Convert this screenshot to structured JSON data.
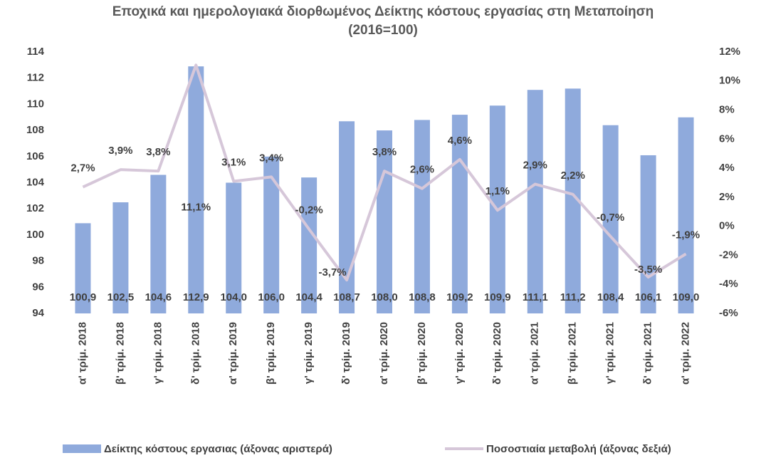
{
  "chart_data": {
    "type": "bar-line",
    "title": "Εποχικά και ημερολογιακά διορθωμένος Δείκτης κόστους εργασίας στη Μεταποίηση (2016=100)",
    "categories": [
      "α' τρίμ. 2018",
      "β' τρίμ. 2018",
      "γ' τρίμ. 2018",
      "δ' τρίμ. 2018",
      "α' τρίμ. 2019",
      "β' τρίμ. 2019",
      "γ' τρίμ. 2019",
      "δ' τρίμ. 2019",
      "α' τρίμ. 2020",
      "β' τρίμ. 2020",
      "γ' τρίμ. 2020",
      "δ' τρίμ. 2020",
      "α' τρίμ. 2021",
      "β' τρίμ. 2021",
      "γ' τρίμ. 2021",
      "δ' τρίμ. 2021",
      "α' τρίμ. 2022"
    ],
    "series": [
      {
        "name": "Δείκτης κόστους εργασιας (άξονας αριστερά)",
        "color": "#8faadc",
        "values": [
          100.9,
          102.5,
          104.6,
          112.9,
          104.0,
          106.0,
          104.4,
          108.7,
          108.0,
          108.8,
          109.2,
          109.9,
          111.1,
          111.2,
          108.4,
          106.1,
          109.0
        ],
        "value_labels": [
          "100,9",
          "102,5",
          "104,6",
          "112,9",
          "104,0",
          "106,0",
          "104,4",
          "108,7",
          "108,0",
          "108,8",
          "109,2",
          "109,9",
          "111,1",
          "111,2",
          "108,4",
          "106,1",
          "109,0"
        ]
      },
      {
        "name": "Ποσοστιαία μεταβολή (άξονας δεξιά)",
        "color": "#d6c7d9",
        "axis": "y2",
        "values": [
          2.7,
          3.9,
          3.8,
          11.1,
          3.1,
          3.4,
          -0.2,
          -3.7,
          3.8,
          2.6,
          4.6,
          1.1,
          2.9,
          2.2,
          -0.7,
          -3.5,
          -1.9
        ],
        "value_labels": [
          "2,7%",
          "3,9%",
          "3,8%",
          "11,1%",
          "3,1%",
          "3,4%",
          "-0,2%",
          "-3,7%",
          "3,8%",
          "2,6%",
          "4,6%",
          "1,1%",
          "2,9%",
          "2,2%",
          "-0,7%",
          "-3,5%",
          "-1,9%"
        ]
      }
    ],
    "ylim": [
      94,
      114
    ],
    "yticks": [
      94,
      96,
      98,
      100,
      102,
      104,
      106,
      108,
      110,
      112,
      114
    ],
    "y2lim": [
      -6,
      12
    ],
    "y2ticks": [
      {
        "value": -6,
        "label": "-6%"
      },
      {
        "value": -4,
        "label": "-4%"
      },
      {
        "value": -2,
        "label": "-2%"
      },
      {
        "value": 0,
        "label": "0%"
      },
      {
        "value": 2,
        "label": "2%"
      },
      {
        "value": 4,
        "label": "4%"
      },
      {
        "value": 6,
        "label": "6%"
      },
      {
        "value": 8,
        "label": "8%"
      },
      {
        "value": 10,
        "label": "10%"
      },
      {
        "value": 12,
        "label": "12%"
      }
    ],
    "legend": "bottom",
    "grid": false
  }
}
